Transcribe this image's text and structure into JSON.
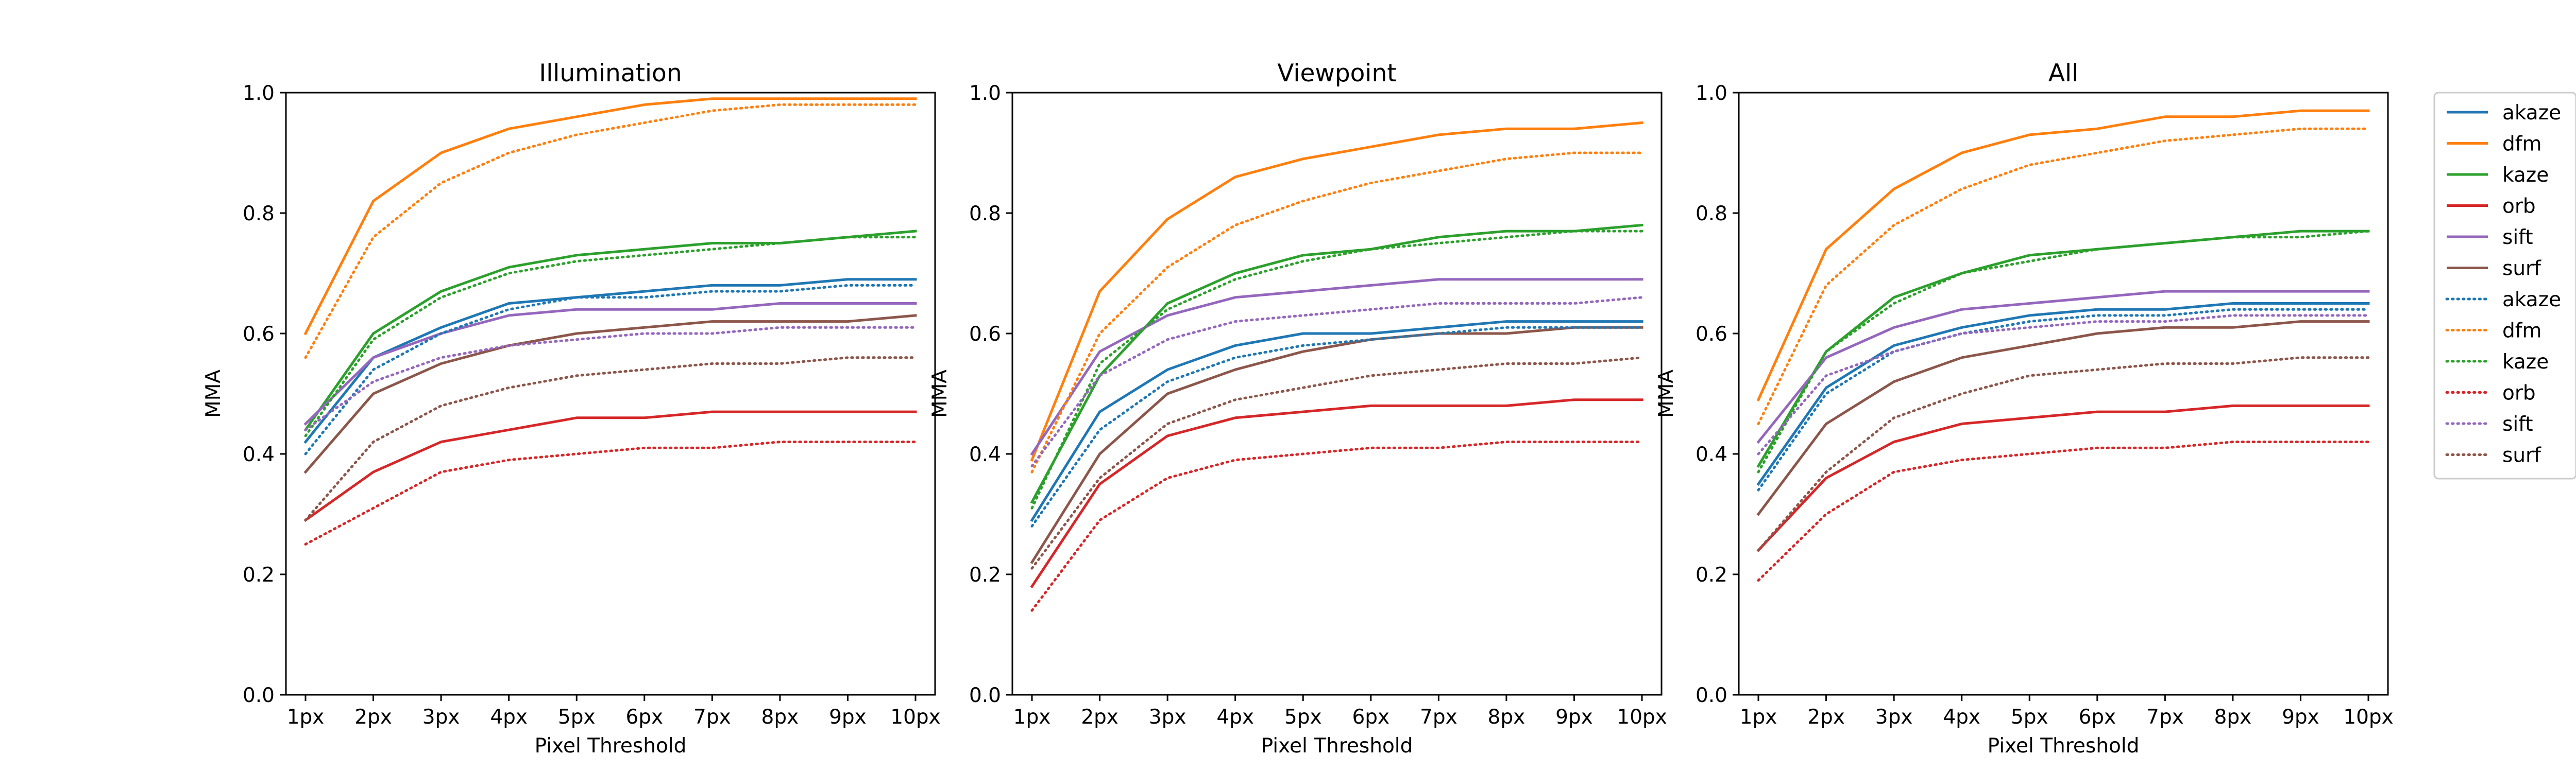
{
  "colors": {
    "akaze": "#1f77b4",
    "dfm": "#ff7f0e",
    "kaze": "#2ca02c",
    "orb": "#d62728",
    "sift": "#9467bd",
    "surf": "#8c564b"
  },
  "legend": {
    "placement": "outside-right",
    "entries": [
      {
        "label": "akaze",
        "method": "akaze",
        "style": "solid"
      },
      {
        "label": "dfm",
        "method": "dfm",
        "style": "solid"
      },
      {
        "label": "kaze",
        "method": "kaze",
        "style": "solid"
      },
      {
        "label": "orb",
        "method": "orb",
        "style": "solid"
      },
      {
        "label": "sift",
        "method": "sift",
        "style": "solid"
      },
      {
        "label": "surf",
        "method": "surf",
        "style": "solid"
      },
      {
        "label": "akaze",
        "method": "akaze",
        "style": "dotted"
      },
      {
        "label": "dfm",
        "method": "dfm",
        "style": "dotted"
      },
      {
        "label": "kaze",
        "method": "kaze",
        "style": "dotted"
      },
      {
        "label": "orb",
        "method": "orb",
        "style": "dotted"
      },
      {
        "label": "sift",
        "method": "sift",
        "style": "dotted"
      },
      {
        "label": "surf",
        "method": "surf",
        "style": "dotted"
      }
    ]
  },
  "chart_data": [
    {
      "type": "line",
      "title": "Illumination",
      "xlabel": "Pixel Threshold",
      "ylabel": "MMA",
      "categories": [
        "1px",
        "2px",
        "3px",
        "4px",
        "5px",
        "6px",
        "7px",
        "8px",
        "9px",
        "10px"
      ],
      "ylim": [
        0.0,
        1.0
      ],
      "yticks": [
        "0.0",
        "0.2",
        "0.4",
        "0.6",
        "0.8",
        "1.0"
      ],
      "grid": false,
      "series": [
        {
          "name": "akaze",
          "method": "akaze",
          "style": "solid",
          "values": [
            0.42,
            0.56,
            0.61,
            0.65,
            0.66,
            0.67,
            0.68,
            0.68,
            0.69,
            0.69
          ]
        },
        {
          "name": "dfm",
          "method": "dfm",
          "style": "solid",
          "values": [
            0.6,
            0.82,
            0.9,
            0.94,
            0.96,
            0.98,
            0.99,
            0.99,
            0.99,
            0.99
          ]
        },
        {
          "name": "kaze",
          "method": "kaze",
          "style": "solid",
          "values": [
            0.44,
            0.6,
            0.67,
            0.71,
            0.73,
            0.74,
            0.75,
            0.75,
            0.76,
            0.77
          ]
        },
        {
          "name": "orb",
          "method": "orb",
          "style": "solid",
          "values": [
            0.29,
            0.37,
            0.42,
            0.44,
            0.46,
            0.46,
            0.47,
            0.47,
            0.47,
            0.47
          ]
        },
        {
          "name": "sift",
          "method": "sift",
          "style": "solid",
          "values": [
            0.45,
            0.56,
            0.6,
            0.63,
            0.64,
            0.64,
            0.64,
            0.65,
            0.65,
            0.65
          ]
        },
        {
          "name": "surf",
          "method": "surf",
          "style": "solid",
          "values": [
            0.37,
            0.5,
            0.55,
            0.58,
            0.6,
            0.61,
            0.62,
            0.62,
            0.62,
            0.63
          ]
        },
        {
          "name": "akaze",
          "method": "akaze",
          "style": "dotted",
          "values": [
            0.4,
            0.54,
            0.6,
            0.64,
            0.66,
            0.66,
            0.67,
            0.67,
            0.68,
            0.68
          ]
        },
        {
          "name": "dfm",
          "method": "dfm",
          "style": "dotted",
          "values": [
            0.56,
            0.76,
            0.85,
            0.9,
            0.93,
            0.95,
            0.97,
            0.98,
            0.98,
            0.98
          ]
        },
        {
          "name": "kaze",
          "method": "kaze",
          "style": "dotted",
          "values": [
            0.43,
            0.59,
            0.66,
            0.7,
            0.72,
            0.73,
            0.74,
            0.75,
            0.76,
            0.76
          ]
        },
        {
          "name": "orb",
          "method": "orb",
          "style": "dotted",
          "values": [
            0.25,
            0.31,
            0.37,
            0.39,
            0.4,
            0.41,
            0.41,
            0.42,
            0.42,
            0.42
          ]
        },
        {
          "name": "sift",
          "method": "sift",
          "style": "dotted",
          "values": [
            0.44,
            0.52,
            0.56,
            0.58,
            0.59,
            0.6,
            0.6,
            0.61,
            0.61,
            0.61
          ]
        },
        {
          "name": "surf",
          "method": "surf",
          "style": "dotted",
          "values": [
            0.29,
            0.42,
            0.48,
            0.51,
            0.53,
            0.54,
            0.55,
            0.55,
            0.56,
            0.56
          ]
        }
      ]
    },
    {
      "type": "line",
      "title": "Viewpoint",
      "xlabel": "Pixel Threshold",
      "ylabel": "MMA",
      "categories": [
        "1px",
        "2px",
        "3px",
        "4px",
        "5px",
        "6px",
        "7px",
        "8px",
        "9px",
        "10px"
      ],
      "ylim": [
        0.0,
        1.0
      ],
      "yticks": [
        "0.0",
        "0.2",
        "0.4",
        "0.6",
        "0.8",
        "1.0"
      ],
      "grid": false,
      "series": [
        {
          "name": "akaze",
          "method": "akaze",
          "style": "solid",
          "values": [
            0.29,
            0.47,
            0.54,
            0.58,
            0.6,
            0.6,
            0.61,
            0.62,
            0.62,
            0.62
          ]
        },
        {
          "name": "dfm",
          "method": "dfm",
          "style": "solid",
          "values": [
            0.39,
            0.67,
            0.79,
            0.86,
            0.89,
            0.91,
            0.93,
            0.94,
            0.94,
            0.95
          ]
        },
        {
          "name": "kaze",
          "method": "kaze",
          "style": "solid",
          "values": [
            0.32,
            0.53,
            0.65,
            0.7,
            0.73,
            0.74,
            0.76,
            0.77,
            0.77,
            0.78
          ]
        },
        {
          "name": "orb",
          "method": "orb",
          "style": "solid",
          "values": [
            0.18,
            0.35,
            0.43,
            0.46,
            0.47,
            0.48,
            0.48,
            0.48,
            0.49,
            0.49
          ]
        },
        {
          "name": "sift",
          "method": "sift",
          "style": "solid",
          "values": [
            0.4,
            0.57,
            0.63,
            0.66,
            0.67,
            0.68,
            0.69,
            0.69,
            0.69,
            0.69
          ]
        },
        {
          "name": "surf",
          "method": "surf",
          "style": "solid",
          "values": [
            0.22,
            0.4,
            0.5,
            0.54,
            0.57,
            0.59,
            0.6,
            0.6,
            0.61,
            0.61
          ]
        },
        {
          "name": "akaze",
          "method": "akaze",
          "style": "dotted",
          "values": [
            0.28,
            0.44,
            0.52,
            0.56,
            0.58,
            0.59,
            0.6,
            0.61,
            0.61,
            0.61
          ]
        },
        {
          "name": "dfm",
          "method": "dfm",
          "style": "dotted",
          "values": [
            0.37,
            0.6,
            0.71,
            0.78,
            0.82,
            0.85,
            0.87,
            0.89,
            0.9,
            0.9
          ]
        },
        {
          "name": "kaze",
          "method": "kaze",
          "style": "dotted",
          "values": [
            0.31,
            0.55,
            0.64,
            0.69,
            0.72,
            0.74,
            0.75,
            0.76,
            0.77,
            0.77
          ]
        },
        {
          "name": "orb",
          "method": "orb",
          "style": "dotted",
          "values": [
            0.14,
            0.29,
            0.36,
            0.39,
            0.4,
            0.41,
            0.41,
            0.42,
            0.42,
            0.42
          ]
        },
        {
          "name": "sift",
          "method": "sift",
          "style": "dotted",
          "values": [
            0.38,
            0.53,
            0.59,
            0.62,
            0.63,
            0.64,
            0.65,
            0.65,
            0.65,
            0.66
          ]
        },
        {
          "name": "surf",
          "method": "surf",
          "style": "dotted",
          "values": [
            0.21,
            0.36,
            0.45,
            0.49,
            0.51,
            0.53,
            0.54,
            0.55,
            0.55,
            0.56
          ]
        }
      ]
    },
    {
      "type": "line",
      "title": "All",
      "xlabel": "Pixel Threshold",
      "ylabel": "MMA",
      "categories": [
        "1px",
        "2px",
        "3px",
        "4px",
        "5px",
        "6px",
        "7px",
        "8px",
        "9px",
        "10px"
      ],
      "ylim": [
        0.0,
        1.0
      ],
      "yticks": [
        "0.0",
        "0.2",
        "0.4",
        "0.6",
        "0.8",
        "1.0"
      ],
      "grid": false,
      "series": [
        {
          "name": "akaze",
          "method": "akaze",
          "style": "solid",
          "values": [
            0.35,
            0.51,
            0.58,
            0.61,
            0.63,
            0.64,
            0.64,
            0.65,
            0.65,
            0.65
          ]
        },
        {
          "name": "dfm",
          "method": "dfm",
          "style": "solid",
          "values": [
            0.49,
            0.74,
            0.84,
            0.9,
            0.93,
            0.94,
            0.96,
            0.96,
            0.97,
            0.97
          ]
        },
        {
          "name": "kaze",
          "method": "kaze",
          "style": "solid",
          "values": [
            0.38,
            0.57,
            0.66,
            0.7,
            0.73,
            0.74,
            0.75,
            0.76,
            0.77,
            0.77
          ]
        },
        {
          "name": "orb",
          "method": "orb",
          "style": "solid",
          "values": [
            0.24,
            0.36,
            0.42,
            0.45,
            0.46,
            0.47,
            0.47,
            0.48,
            0.48,
            0.48
          ]
        },
        {
          "name": "sift",
          "method": "sift",
          "style": "solid",
          "values": [
            0.42,
            0.56,
            0.61,
            0.64,
            0.65,
            0.66,
            0.67,
            0.67,
            0.67,
            0.67
          ]
        },
        {
          "name": "surf",
          "method": "surf",
          "style": "solid",
          "values": [
            0.3,
            0.45,
            0.52,
            0.56,
            0.58,
            0.6,
            0.61,
            0.61,
            0.62,
            0.62
          ]
        },
        {
          "name": "akaze",
          "method": "akaze",
          "style": "dotted",
          "values": [
            0.34,
            0.5,
            0.57,
            0.6,
            0.62,
            0.63,
            0.63,
            0.64,
            0.64,
            0.64
          ]
        },
        {
          "name": "dfm",
          "method": "dfm",
          "style": "dotted",
          "values": [
            0.45,
            0.68,
            0.78,
            0.84,
            0.88,
            0.9,
            0.92,
            0.93,
            0.94,
            0.94
          ]
        },
        {
          "name": "kaze",
          "method": "kaze",
          "style": "dotted",
          "values": [
            0.37,
            0.57,
            0.65,
            0.7,
            0.72,
            0.74,
            0.75,
            0.76,
            0.76,
            0.77
          ]
        },
        {
          "name": "orb",
          "method": "orb",
          "style": "dotted",
          "values": [
            0.19,
            0.3,
            0.37,
            0.39,
            0.4,
            0.41,
            0.41,
            0.42,
            0.42,
            0.42
          ]
        },
        {
          "name": "sift",
          "method": "sift",
          "style": "dotted",
          "values": [
            0.4,
            0.53,
            0.57,
            0.6,
            0.61,
            0.62,
            0.62,
            0.63,
            0.63,
            0.63
          ]
        },
        {
          "name": "surf",
          "method": "surf",
          "style": "dotted",
          "values": [
            0.24,
            0.37,
            0.46,
            0.5,
            0.53,
            0.54,
            0.55,
            0.55,
            0.56,
            0.56
          ]
        }
      ]
    }
  ]
}
